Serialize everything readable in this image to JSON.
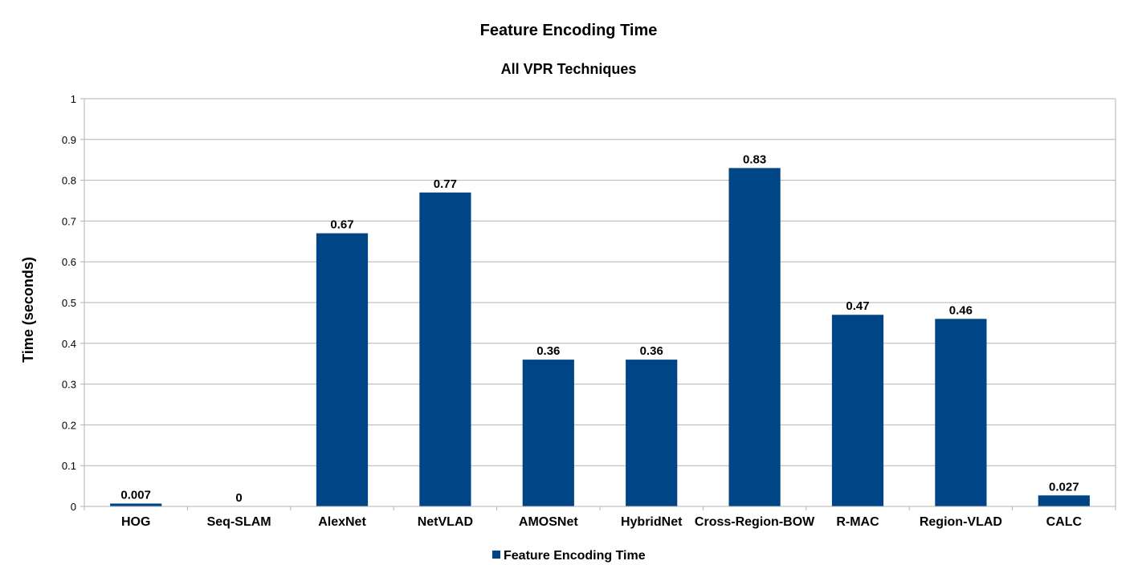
{
  "chart_data": {
    "type": "bar",
    "title": "Feature Encoding Time",
    "subtitle": "All VPR Techniques",
    "xlabel": "",
    "ylabel": "Time (seconds)",
    "ylim": [
      0,
      1
    ],
    "yticks": [
      "0",
      "0.1",
      "0.2",
      "0.3",
      "0.4",
      "0.5",
      "0.6",
      "0.7",
      "0.8",
      "0.9",
      "1"
    ],
    "grid": true,
    "legend_position": "bottom",
    "categories": [
      "HOG",
      "Seq-SLAM",
      "AlexNet",
      "NetVLAD",
      "AMOSNet",
      "HybridNet",
      "Cross-Region-BOW",
      "R-MAC",
      "Region-VLAD",
      "CALC"
    ],
    "series": [
      {
        "name": "Feature Encoding Time",
        "color": "#004586",
        "values": [
          0.007,
          0,
          0.67,
          0.77,
          0.36,
          0.36,
          0.83,
          0.47,
          0.46,
          0.027
        ],
        "labels": [
          "0.007",
          "0",
          "0.67",
          "0.77",
          "0.36",
          "0.36",
          "0.83",
          "0.47",
          "0.46",
          "0.027"
        ]
      }
    ]
  }
}
